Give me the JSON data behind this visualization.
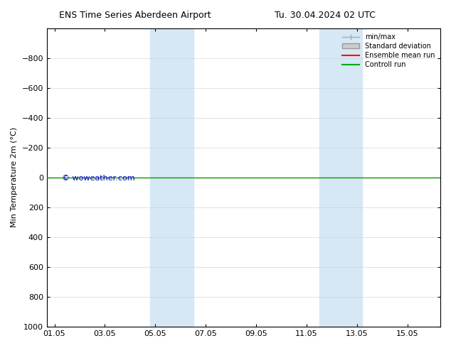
{
  "title_left": "ENS Time Series Aberdeen Airport",
  "title_right": "Tu. 30.04.2024 02 UTC",
  "ylabel": "Min Temperature 2m (°C)",
  "ylim": [
    -1000,
    1000
  ],
  "yticks": [
    -800,
    -600,
    -400,
    -200,
    0,
    200,
    400,
    600,
    800,
    1000
  ],
  "xtick_labels": [
    "01.05",
    "03.05",
    "05.05",
    "07.05",
    "09.05",
    "11.05",
    "13.05",
    "15.05"
  ],
  "xtick_positions": [
    0,
    2,
    4,
    6,
    8,
    10,
    12,
    14
  ],
  "xlim": [
    -0.3,
    15.3
  ],
  "shaded_bands": [
    {
      "x_start": 3.8,
      "x_end": 5.5
    },
    {
      "x_start": 10.5,
      "x_end": 12.2
    }
  ],
  "control_run_y": 0,
  "ensemble_mean_y": 0,
  "band_color": "#d6e8f5",
  "control_run_color": "#00aa00",
  "ensemble_mean_color": "#ff0000",
  "minmax_color": "#aaaaaa",
  "stddev_color": "#cccccc",
  "watermark": "© woweather.com",
  "watermark_color": "#0000cc",
  "background_color": "#ffffff",
  "legend_entries": [
    "min/max",
    "Standard deviation",
    "Ensemble mean run",
    "Controll run"
  ],
  "legend_colors": [
    "#aaaaaa",
    "#cccccc",
    "#ff0000",
    "#00aa00"
  ]
}
